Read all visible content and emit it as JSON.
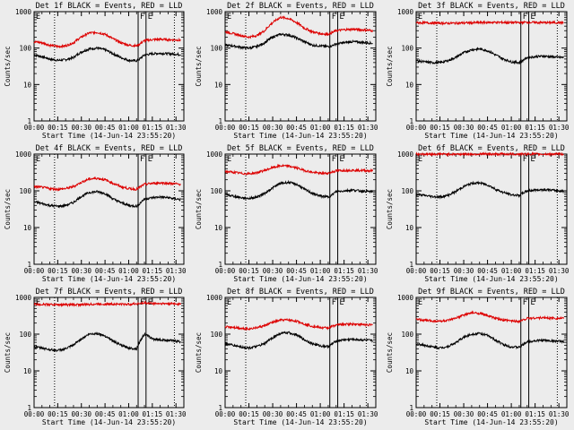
{
  "colors": {
    "background": "#ececec",
    "events": "#000000",
    "lld": "#dd0000",
    "axes": "#000000"
  },
  "shared": {
    "xticks": [
      "00:00",
      "00:15",
      "00:30",
      "00:45",
      "01:00",
      "01:15",
      "01:30"
    ],
    "xtick_minutes": [
      0,
      15,
      30,
      45,
      60,
      75,
      90
    ],
    "xlim_minutes": [
      0,
      95
    ],
    "ylim": [
      1,
      1000
    ],
    "yscale": "log",
    "yticks": [
      "1",
      "10",
      "100",
      "1000"
    ],
    "ylabel": "Counts/sec",
    "xlabel": "Start Time (14-Jun-14 23:55:20)",
    "vlines": [
      {
        "minute": 13,
        "style": "dotted",
        "label": ""
      },
      {
        "minute": 66,
        "style": "solid",
        "label": "F"
      },
      {
        "minute": 71,
        "style": "solid",
        "label": "E"
      },
      {
        "minute": 89,
        "style": "dotted",
        "label": ""
      }
    ],
    "corner_label": "E"
  },
  "chart_data": [
    {
      "type": "line",
      "title": "Det 1f BLACK = Events, RED = LLD",
      "series": [
        {
          "name": "Events",
          "color": "#000000",
          "x": [
            0,
            5,
            10,
            15,
            20,
            25,
            30,
            35,
            40,
            45,
            50,
            55,
            60,
            65,
            67,
            70,
            75,
            80,
            85,
            90,
            93
          ],
          "y": [
            65,
            58,
            50,
            46,
            48,
            55,
            78,
            95,
            100,
            90,
            70,
            55,
            46,
            45,
            50,
            65,
            70,
            72,
            70,
            68,
            66
          ]
        },
        {
          "name": "LLD",
          "color": "#dd0000",
          "x": [
            0,
            5,
            10,
            15,
            20,
            25,
            30,
            35,
            40,
            45,
            50,
            55,
            60,
            65,
            67,
            70,
            75,
            80,
            85,
            90,
            93
          ],
          "y": [
            150,
            140,
            120,
            110,
            115,
            140,
            200,
            260,
            270,
            240,
            180,
            140,
            120,
            115,
            130,
            160,
            170,
            175,
            170,
            168,
            165
          ]
        }
      ]
    },
    {
      "type": "line",
      "title": "Det 2f BLACK = Events, RED = LLD",
      "series": [
        {
          "name": "Events",
          "color": "#000000",
          "x": [
            0,
            5,
            10,
            15,
            20,
            25,
            30,
            35,
            40,
            45,
            50,
            55,
            60,
            65,
            67,
            70,
            75,
            80,
            85,
            90,
            93
          ],
          "y": [
            120,
            115,
            105,
            100,
            110,
            140,
            200,
            240,
            230,
            190,
            150,
            120,
            115,
            110,
            115,
            130,
            140,
            150,
            145,
            140,
            135
          ]
        },
        {
          "name": "LLD",
          "color": "#dd0000",
          "x": [
            0,
            5,
            10,
            15,
            20,
            25,
            30,
            35,
            40,
            45,
            50,
            55,
            60,
            65,
            67,
            70,
            75,
            80,
            85,
            90,
            93
          ],
          "y": [
            280,
            250,
            220,
            200,
            220,
            300,
            500,
            700,
            650,
            500,
            350,
            280,
            250,
            240,
            260,
            300,
            320,
            330,
            320,
            310,
            300
          ]
        }
      ]
    },
    {
      "type": "line",
      "title": "Det 3f BLACK = Events, RED = LLD",
      "series": [
        {
          "name": "Events",
          "color": "#000000",
          "x": [
            0,
            5,
            10,
            15,
            20,
            25,
            30,
            35,
            40,
            45,
            50,
            55,
            60,
            65,
            67,
            70,
            75,
            80,
            85,
            90,
            93
          ],
          "y": [
            45,
            42,
            40,
            40,
            45,
            55,
            75,
            90,
            95,
            85,
            65,
            50,
            42,
            40,
            45,
            55,
            58,
            60,
            58,
            56,
            55
          ]
        },
        {
          "name": "LLD",
          "color": "#dd0000",
          "x": [
            0,
            10,
            20,
            30,
            40,
            50,
            60,
            66,
            70,
            80,
            93
          ],
          "y": [
            500,
            490,
            480,
            490,
            500,
            510,
            500,
            505,
            510,
            500,
            500
          ]
        }
      ]
    },
    {
      "type": "line",
      "title": "Det 4f BLACK = Events, RED = LLD",
      "series": [
        {
          "name": "Events",
          "color": "#000000",
          "x": [
            0,
            5,
            10,
            15,
            20,
            25,
            30,
            35,
            40,
            45,
            50,
            55,
            60,
            65,
            67,
            70,
            75,
            80,
            85,
            90,
            93
          ],
          "y": [
            50,
            45,
            40,
            38,
            40,
            48,
            70,
            90,
            95,
            85,
            60,
            48,
            40,
            38,
            45,
            60,
            65,
            68,
            65,
            60,
            58
          ]
        },
        {
          "name": "LLD",
          "color": "#dd0000",
          "x": [
            0,
            5,
            10,
            15,
            20,
            25,
            30,
            35,
            40,
            45,
            50,
            55,
            60,
            65,
            67,
            70,
            75,
            80,
            85,
            90,
            93
          ],
          "y": [
            130,
            125,
            115,
            110,
            115,
            130,
            170,
            210,
            220,
            200,
            160,
            130,
            115,
            110,
            125,
            150,
            160,
            165,
            160,
            155,
            150
          ]
        }
      ]
    },
    {
      "type": "line",
      "title": "Det 5f BLACK = Events, RED = LLD",
      "series": [
        {
          "name": "Events",
          "color": "#000000",
          "x": [
            0,
            5,
            10,
            15,
            20,
            25,
            30,
            35,
            40,
            45,
            50,
            55,
            60,
            65,
            67,
            70,
            75,
            80,
            85,
            90,
            93
          ],
          "y": [
            80,
            72,
            65,
            62,
            68,
            85,
            120,
            160,
            170,
            150,
            110,
            85,
            72,
            68,
            75,
            95,
            100,
            105,
            100,
            96,
            95
          ]
        },
        {
          "name": "LLD",
          "color": "#dd0000",
          "x": [
            0,
            5,
            10,
            15,
            20,
            25,
            30,
            35,
            40,
            45,
            50,
            55,
            60,
            65,
            67,
            70,
            75,
            80,
            85,
            90,
            93
          ],
          "y": [
            340,
            320,
            300,
            290,
            310,
            360,
            430,
            480,
            470,
            420,
            360,
            320,
            300,
            300,
            320,
            350,
            360,
            365,
            360,
            355,
            350
          ]
        }
      ]
    },
    {
      "type": "line",
      "title": "Det 6f BLACK = Events, RED = LLD",
      "series": [
        {
          "name": "Events",
          "color": "#000000",
          "x": [
            0,
            5,
            10,
            15,
            20,
            25,
            30,
            35,
            40,
            45,
            50,
            55,
            60,
            65,
            67,
            70,
            75,
            80,
            85,
            90,
            93
          ],
          "y": [
            80,
            75,
            70,
            68,
            75,
            95,
            130,
            160,
            165,
            145,
            110,
            90,
            78,
            75,
            85,
            100,
            105,
            108,
            105,
            100,
            98
          ]
        },
        {
          "name": "LLD",
          "color": "#dd0000",
          "x": [
            0,
            10,
            20,
            30,
            40,
            50,
            60,
            66,
            70,
            80,
            93
          ],
          "y": [
            1000,
            1000,
            1000,
            1000,
            1000,
            1000,
            1000,
            1000,
            1000,
            1000,
            1000
          ]
        }
      ]
    },
    {
      "type": "line",
      "title": "Det 7f BLACK = Events, RED = LLD",
      "series": [
        {
          "name": "Events",
          "color": "#000000",
          "x": [
            0,
            5,
            10,
            15,
            20,
            25,
            30,
            35,
            40,
            45,
            50,
            55,
            60,
            65,
            67,
            70,
            75,
            80,
            85,
            90,
            93
          ],
          "y": [
            45,
            42,
            38,
            36,
            40,
            50,
            75,
            100,
            105,
            90,
            65,
            50,
            42,
            40,
            60,
            100,
            75,
            70,
            68,
            65,
            62
          ]
        },
        {
          "name": "LLD",
          "color": "#dd0000",
          "x": [
            0,
            10,
            20,
            30,
            40,
            50,
            60,
            66,
            70,
            80,
            93
          ],
          "y": [
            650,
            640,
            630,
            640,
            660,
            660,
            650,
            680,
            700,
            680,
            670
          ]
        }
      ]
    },
    {
      "type": "line",
      "title": "Det 8f BLACK = Events, RED = LLD",
      "series": [
        {
          "name": "Events",
          "color": "#000000",
          "x": [
            0,
            5,
            10,
            15,
            20,
            25,
            30,
            35,
            40,
            45,
            50,
            55,
            60,
            65,
            67,
            70,
            75,
            80,
            85,
            90,
            93
          ],
          "y": [
            55,
            50,
            45,
            42,
            46,
            55,
            80,
            105,
            110,
            95,
            70,
            55,
            48,
            46,
            52,
            65,
            70,
            72,
            70,
            68,
            66
          ]
        },
        {
          "name": "LLD",
          "color": "#dd0000",
          "x": [
            0,
            5,
            10,
            15,
            20,
            25,
            30,
            35,
            40,
            45,
            50,
            55,
            60,
            65,
            67,
            70,
            75,
            80,
            85,
            90,
            93
          ],
          "y": [
            160,
            155,
            145,
            140,
            150,
            170,
            210,
            240,
            245,
            225,
            190,
            165,
            150,
            148,
            160,
            180,
            185,
            190,
            185,
            180,
            178
          ]
        }
      ]
    },
    {
      "type": "line",
      "title": "Det 9f BLACK = Events, RED = LLD",
      "series": [
        {
          "name": "Events",
          "color": "#000000",
          "x": [
            0,
            5,
            10,
            15,
            20,
            25,
            30,
            35,
            40,
            45,
            50,
            55,
            60,
            65,
            67,
            70,
            75,
            80,
            85,
            90,
            93
          ],
          "y": [
            55,
            50,
            45,
            42,
            46,
            58,
            82,
            100,
            105,
            92,
            68,
            52,
            45,
            44,
            50,
            62,
            66,
            68,
            66,
            64,
            62
          ]
        },
        {
          "name": "LLD",
          "color": "#dd0000",
          "x": [
            0,
            5,
            10,
            15,
            20,
            25,
            30,
            35,
            40,
            45,
            50,
            55,
            60,
            65,
            67,
            70,
            75,
            80,
            85,
            90,
            93
          ],
          "y": [
            250,
            240,
            230,
            225,
            235,
            270,
            330,
            380,
            370,
            320,
            270,
            240,
            230,
            225,
            240,
            270,
            275,
            280,
            275,
            270,
            268
          ]
        }
      ]
    }
  ]
}
